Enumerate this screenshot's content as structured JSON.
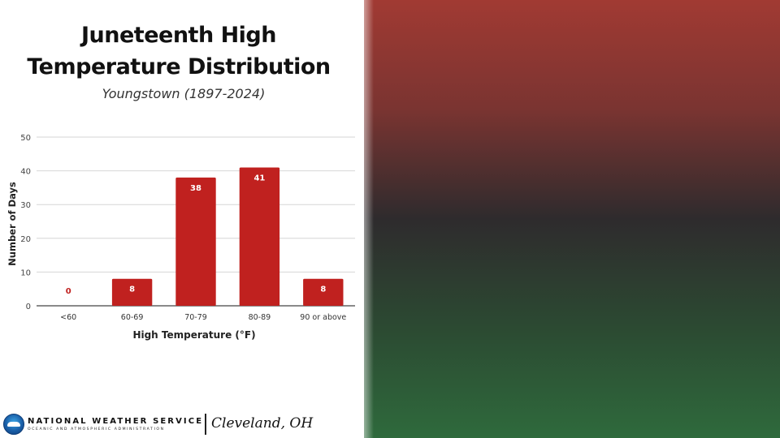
{
  "header": {
    "title_line1": "Juneteenth High",
    "title_line2": "Temperature Distribution",
    "subtitle": "Youngstown (1897-2024)"
  },
  "chart_data": {
    "type": "bar",
    "categories": [
      "<60",
      "60-69",
      "70-79",
      "80-89",
      "90 or above"
    ],
    "values": [
      0,
      8,
      38,
      41,
      8
    ],
    "data_labels": [
      "0",
      "8",
      "38",
      "41",
      "8"
    ],
    "xlabel": "High Temperature (°F)",
    "ylabel": "Number of Days",
    "ylim": [
      0,
      50
    ],
    "yticks": [
      0,
      10,
      20,
      30,
      40,
      50
    ],
    "grid": true,
    "bar_color": "#c0211f"
  },
  "footer": {
    "agency": "NATIONAL WEATHER SERVICE",
    "agency_sub": "OCEANIC AND ATMOSPHERIC ADMINISTRATION",
    "office": "Cleveland, OH"
  },
  "colors": {
    "background_top": "#a13a33",
    "background_mid": "#2e2b2d",
    "background_bottom": "#2e6a3c"
  }
}
